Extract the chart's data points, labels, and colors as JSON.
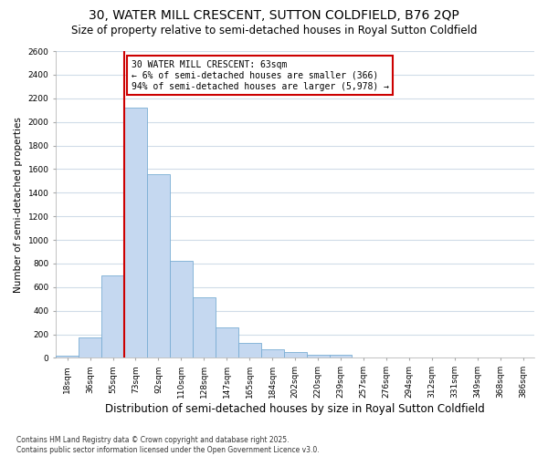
{
  "title": "30, WATER MILL CRESCENT, SUTTON COLDFIELD, B76 2QP",
  "subtitle": "Size of property relative to semi-detached houses in Royal Sutton Coldfield",
  "xlabel": "Distribution of semi-detached houses by size in Royal Sutton Coldfield",
  "ylabel": "Number of semi-detached properties",
  "footnote": "Contains HM Land Registry data © Crown copyright and database right 2025.\nContains public sector information licensed under the Open Government Licence v3.0.",
  "categories": [
    "18sqm",
    "36sqm",
    "55sqm",
    "73sqm",
    "92sqm",
    "110sqm",
    "128sqm",
    "147sqm",
    "165sqm",
    "184sqm",
    "202sqm",
    "220sqm",
    "239sqm",
    "257sqm",
    "276sqm",
    "294sqm",
    "312sqm",
    "331sqm",
    "349sqm",
    "368sqm",
    "386sqm"
  ],
  "values": [
    15,
    175,
    700,
    2120,
    1560,
    825,
    510,
    255,
    125,
    75,
    50,
    25,
    30,
    0,
    0,
    0,
    0,
    0,
    0,
    0,
    0
  ],
  "bar_color": "#c5d8f0",
  "bar_edge_color": "#7aadd4",
  "vline_color": "#cc0000",
  "annotation_title": "30 WATER MILL CRESCENT: 63sqm",
  "annotation_line1": "← 6% of semi-detached houses are smaller (366)",
  "annotation_line2": "94% of semi-detached houses are larger (5,978) →",
  "annotation_box_color": "#cc0000",
  "annotation_bg": "#ffffff",
  "ylim": [
    0,
    2600
  ],
  "yticks": [
    0,
    200,
    400,
    600,
    800,
    1000,
    1200,
    1400,
    1600,
    1800,
    2000,
    2200,
    2400,
    2600
  ],
  "background_color": "#ffffff",
  "plot_bg_color": "#ffffff",
  "grid_color": "#d0dce8",
  "title_fontsize": 10,
  "subtitle_fontsize": 8.5,
  "xlabel_fontsize": 8.5,
  "ylabel_fontsize": 7.5,
  "tick_fontsize": 6.5,
  "footnote_fontsize": 5.5,
  "annotation_fontsize": 7
}
